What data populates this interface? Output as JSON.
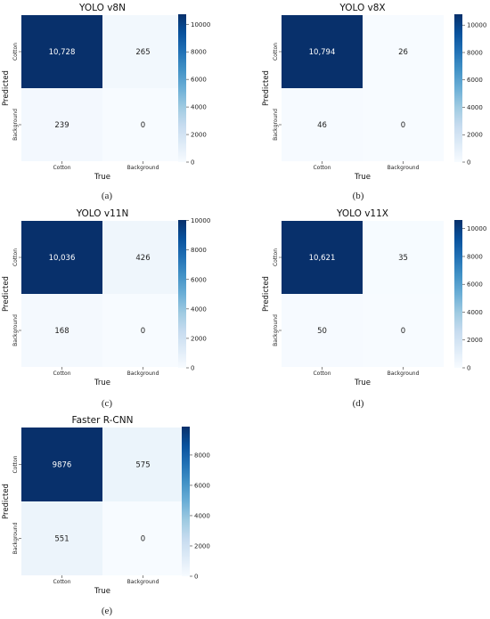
{
  "chart_data": [
    {
      "type": "heatmap",
      "title": "YOLO v8N",
      "xlabel": "True",
      "ylabel": "Predicted",
      "x_categories": [
        "Cotton",
        "Background"
      ],
      "y_categories": [
        "Cotton",
        "Background"
      ],
      "values": [
        [
          "10,728",
          "265"
        ],
        [
          "239",
          "0"
        ]
      ],
      "numeric": [
        [
          10728,
          265
        ],
        [
          239,
          0
        ]
      ],
      "colorbar_ticks": [
        "0",
        "2000",
        "4000",
        "6000",
        "8000",
        "10000"
      ],
      "colorbar_range": [
        0,
        10728
      ],
      "caption": "(a)"
    },
    {
      "type": "heatmap",
      "title": "YOLO v8X",
      "xlabel": "True",
      "ylabel": "Predicted",
      "x_categories": [
        "Cotton",
        "Background"
      ],
      "y_categories": [
        "Cotton",
        "Background"
      ],
      "values": [
        [
          "10,794",
          "26"
        ],
        [
          "46",
          "0"
        ]
      ],
      "numeric": [
        [
          10794,
          26
        ],
        [
          46,
          0
        ]
      ],
      "colorbar_ticks": [
        "0",
        "2000",
        "4000",
        "6000",
        "8000",
        "10000"
      ],
      "colorbar_range": [
        0,
        10794
      ],
      "caption": "(b)"
    },
    {
      "type": "heatmap",
      "title": "YOLO v11N",
      "xlabel": "True",
      "ylabel": "Predicted",
      "x_categories": [
        "Cotton",
        "Background"
      ],
      "y_categories": [
        "Cotton",
        "Background"
      ],
      "values": [
        [
          "10,036",
          "426"
        ],
        [
          "168",
          "0"
        ]
      ],
      "numeric": [
        [
          10036,
          426
        ],
        [
          168,
          0
        ]
      ],
      "colorbar_ticks": [
        "0",
        "2000",
        "4000",
        "6000",
        "8000",
        "10000"
      ],
      "colorbar_range": [
        0,
        10036
      ],
      "caption": "(c)"
    },
    {
      "type": "heatmap",
      "title": "YOLO v11X",
      "xlabel": "True",
      "ylabel": "Predicted",
      "x_categories": [
        "Cotton",
        "Background"
      ],
      "y_categories": [
        "Cotton",
        "Background"
      ],
      "values": [
        [
          "10,621",
          "35"
        ],
        [
          "50",
          "0"
        ]
      ],
      "numeric": [
        [
          10621,
          35
        ],
        [
          50,
          0
        ]
      ],
      "colorbar_ticks": [
        "0",
        "2000",
        "4000",
        "6000",
        "8000",
        "10000"
      ],
      "colorbar_range": [
        0,
        10621
      ],
      "caption": "(d)"
    },
    {
      "type": "heatmap",
      "title": "Faster R-CNN",
      "xlabel": "True",
      "ylabel": "Predicted",
      "x_categories": [
        "Cotton",
        "Background"
      ],
      "y_categories": [
        "Cotton",
        "Background"
      ],
      "values": [
        [
          "9876",
          "575"
        ],
        [
          "551",
          "0"
        ]
      ],
      "numeric": [
        [
          9876,
          575
        ],
        [
          551,
          0
        ]
      ],
      "colorbar_ticks": [
        "0",
        "2000",
        "4000",
        "6000",
        "8000"
      ],
      "colorbar_range": [
        0,
        9876
      ],
      "caption": "(e)"
    }
  ]
}
